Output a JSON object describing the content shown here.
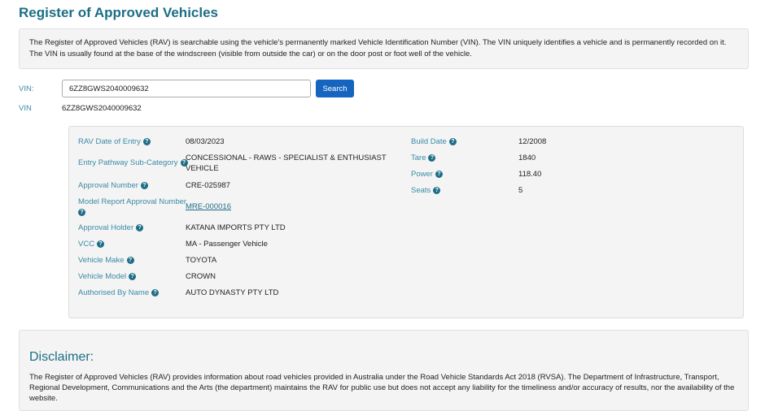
{
  "title": "Register of Approved Vehicles",
  "intro": "The Register of Approved Vehicles (RAV) is searchable using the vehicle's permanently marked Vehicle Identification Number (VIN). The VIN uniquely identifies a vehicle and is permanently recorded on it. The VIN is usually found at the base of the windscreen (visible from outside the car) or on the door post or foot well of the vehicle.",
  "search": {
    "label": "VIN:",
    "value": "6ZZ8GWS2040009632",
    "button": "Search"
  },
  "result_vin": {
    "label": "VIN",
    "value": "6ZZ8GWS2040009632"
  },
  "left_fields": [
    {
      "label": "RAV Date of Entry",
      "value": "08/03/2023"
    },
    {
      "label": "Entry Pathway Sub-Category",
      "value": "CONCESSIONAL - RAWS - SPECIALIST & ENTHUSIAST VEHICLE"
    },
    {
      "label": "Approval Number",
      "value": "CRE-025987"
    },
    {
      "label": "Model Report Approval Number",
      "value": "MRE-000016"
    },
    {
      "label": "Approval Holder",
      "value": "KATANA IMPORTS PTY LTD"
    },
    {
      "label": "VCC",
      "value": "MA - Passenger Vehicle"
    },
    {
      "label": "Vehicle Make",
      "value": "TOYOTA"
    },
    {
      "label": "Vehicle Model",
      "value": "CROWN"
    },
    {
      "label": "Authorised By Name",
      "value": "AUTO DYNASTY PTY LTD"
    }
  ],
  "right_fields": [
    {
      "label": "Build Date",
      "value": "12/2008"
    },
    {
      "label": "Tare",
      "value": "1840"
    },
    {
      "label": "Power",
      "value": "118.40"
    },
    {
      "label": "Seats",
      "value": "5"
    }
  ],
  "help_icon": "?",
  "disclaimer": {
    "heading": "Disclaimer:",
    "text": "The Register of Approved Vehicles (RAV) provides information about road vehicles provided in Australia under the Road Vehicle Standards Act 2018 (RVSA). The Department of Infrastructure, Transport, Regional Development, Communications and the Arts (the department) maintains the RAV for public use but does not accept any liability for the timeliness and/or accuracy of results, nor the availability of the website."
  }
}
